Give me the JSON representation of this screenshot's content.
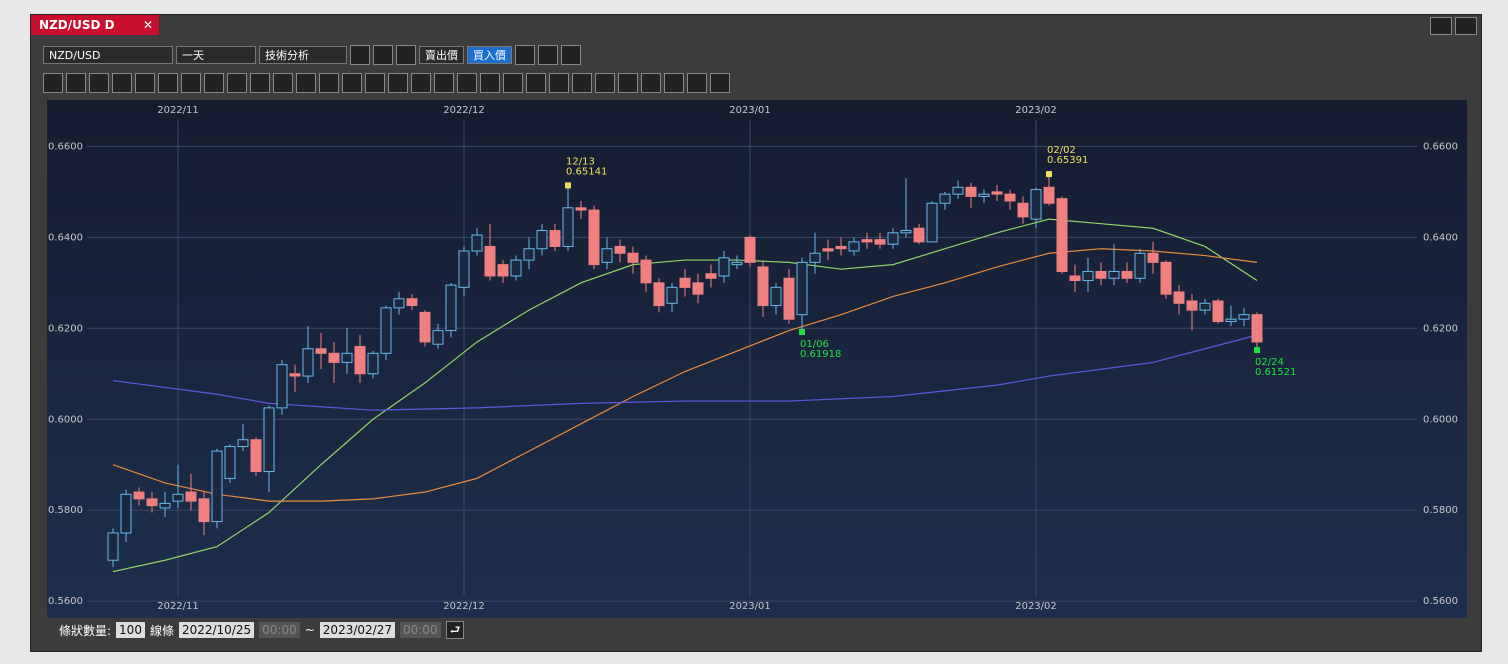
{
  "tab": {
    "title": "NZD/USD D"
  },
  "toolbar": {
    "symbol": "NZD/USD",
    "period": "一天",
    "analysis": "技術分析",
    "sell": "賣出價",
    "buy": "買入價"
  },
  "footer": {
    "count_label": "條狀數量:",
    "count": "100",
    "line_label": "線條",
    "from_date": "2022/10/25",
    "from_time": "00:00",
    "sep": "~",
    "to_date": "2023/02/27",
    "to_time": "00:00"
  },
  "chart_data": {
    "type": "candlestick",
    "categories": [
      null,
      null,
      null,
      null,
      null,
      "2022/11",
      null,
      null,
      null,
      null,
      null,
      null,
      null,
      null,
      null,
      null,
      null,
      null,
      null,
      null,
      null,
      null,
      null,
      null,
      null,
      null,
      null,
      "2022/12",
      null,
      null,
      null,
      null,
      null,
      null,
      null,
      null,
      null,
      null,
      null,
      null,
      null,
      null,
      null,
      null,
      null,
      null,
      null,
      null,
      null,
      "2023/01",
      null,
      null,
      null,
      null,
      null,
      null,
      null,
      null,
      null,
      null,
      null,
      null,
      null,
      null,
      null,
      null,
      null,
      null,
      null,
      null,
      null,
      "2023/02",
      null,
      null,
      null,
      null,
      null,
      null,
      null,
      null,
      null,
      null,
      null,
      null,
      null,
      null,
      null,
      null,
      null
    ],
    "open": [
      0.569,
      0.575,
      0.584,
      0.5825,
      0.5805,
      0.582,
      0.584,
      0.5825,
      0.5775,
      0.587,
      0.594,
      0.5955,
      0.5885,
      0.6025,
      0.61,
      0.6095,
      0.6155,
      0.6145,
      0.6125,
      0.616,
      0.61,
      0.6145,
      0.6245,
      0.6265,
      0.6235,
      0.6165,
      0.6195,
      0.629,
      0.637,
      0.638,
      0.634,
      0.6315,
      0.635,
      0.6375,
      0.6415,
      0.638,
      0.6465,
      0.646,
      0.6345,
      0.638,
      0.6365,
      0.635,
      0.63,
      0.6255,
      0.631,
      0.63,
      0.632,
      0.6315,
      0.634,
      0.64,
      0.6335,
      0.625,
      0.631,
      0.623,
      0.6345,
      0.6375,
      0.638,
      0.637,
      0.6395,
      0.6395,
      0.6385,
      0.641,
      0.642,
      0.639,
      0.6475,
      0.6495,
      0.651,
      0.649,
      0.65,
      0.6495,
      0.6475,
      0.644,
      0.651,
      0.6485,
      0.6315,
      0.6305,
      0.6325,
      0.631,
      0.6325,
      0.631,
      0.6365,
      0.6345,
      0.628,
      0.626,
      0.624,
      0.626,
      0.6215,
      0.622,
      0.623
    ],
    "high": [
      0.576,
      0.5845,
      0.585,
      0.584,
      0.584,
      0.59,
      0.588,
      0.584,
      0.5935,
      0.5945,
      0.599,
      0.596,
      0.603,
      0.613,
      0.612,
      0.6205,
      0.619,
      0.617,
      0.62,
      0.6185,
      0.615,
      0.625,
      0.628,
      0.6275,
      0.624,
      0.621,
      0.63,
      0.638,
      0.642,
      0.643,
      0.635,
      0.636,
      0.64,
      0.643,
      0.643,
      0.65141,
      0.648,
      0.647,
      0.64,
      0.6395,
      0.638,
      0.636,
      0.631,
      0.63,
      0.633,
      0.632,
      0.634,
      0.637,
      0.636,
      0.6405,
      0.635,
      0.63,
      0.633,
      0.6355,
      0.641,
      0.6395,
      0.64,
      0.64,
      0.641,
      0.641,
      0.642,
      0.653,
      0.643,
      0.648,
      0.65,
      0.6525,
      0.652,
      0.6505,
      0.6515,
      0.6505,
      0.649,
      0.651,
      0.65391,
      0.649,
      0.634,
      0.6355,
      0.6345,
      0.6385,
      0.6345,
      0.6375,
      0.639,
      0.635,
      0.6295,
      0.6275,
      0.6265,
      0.6265,
      0.625,
      0.6245,
      0.6235
    ],
    "low": [
      0.5675,
      0.573,
      0.581,
      0.5795,
      0.5785,
      0.5805,
      0.58,
      0.5745,
      0.576,
      0.586,
      0.593,
      0.5875,
      0.584,
      0.601,
      0.606,
      0.608,
      0.611,
      0.608,
      0.61,
      0.608,
      0.609,
      0.613,
      0.623,
      0.624,
      0.616,
      0.6155,
      0.618,
      0.627,
      0.636,
      0.6305,
      0.63,
      0.6305,
      0.633,
      0.636,
      0.637,
      0.637,
      0.644,
      0.633,
      0.633,
      0.6345,
      0.632,
      0.628,
      0.6235,
      0.6235,
      0.627,
      0.6255,
      0.629,
      0.63,
      0.633,
      0.6335,
      0.6225,
      0.623,
      0.621,
      0.61918,
      0.632,
      0.635,
      0.636,
      0.636,
      0.6375,
      0.6375,
      0.6375,
      0.64,
      0.6385,
      0.639,
      0.646,
      0.6485,
      0.6465,
      0.6475,
      0.648,
      0.646,
      0.643,
      0.642,
      0.647,
      0.632,
      0.628,
      0.628,
      0.6295,
      0.6295,
      0.63,
      0.63,
      0.632,
      0.6265,
      0.623,
      0.6195,
      0.623,
      0.621,
      0.6205,
      0.6205,
      0.61521
    ],
    "close": [
      0.575,
      0.5835,
      0.5825,
      0.581,
      0.5815,
      0.5835,
      0.582,
      0.5775,
      0.593,
      0.594,
      0.5955,
      0.5885,
      0.6025,
      0.612,
      0.6095,
      0.6155,
      0.6145,
      0.6125,
      0.6145,
      0.61,
      0.6145,
      0.6245,
      0.6265,
      0.625,
      0.617,
      0.6195,
      0.6295,
      0.637,
      0.6405,
      0.6315,
      0.6315,
      0.635,
      0.6375,
      0.6415,
      0.638,
      0.6465,
      0.646,
      0.634,
      0.6375,
      0.6365,
      0.6345,
      0.63,
      0.625,
      0.629,
      0.629,
      0.6275,
      0.631,
      0.6355,
      0.6345,
      0.6345,
      0.625,
      0.629,
      0.622,
      0.6345,
      0.6365,
      0.637,
      0.6375,
      0.639,
      0.639,
      0.6385,
      0.641,
      0.6415,
      0.639,
      0.6475,
      0.6495,
      0.651,
      0.649,
      0.6495,
      0.6495,
      0.648,
      0.6445,
      0.6505,
      0.6475,
      0.6325,
      0.6305,
      0.6325,
      0.631,
      0.6325,
      0.631,
      0.6365,
      0.6345,
      0.6275,
      0.6255,
      0.624,
      0.6255,
      0.6215,
      0.622,
      0.623,
      0.617
    ],
    "up_color": "#6ab8e8",
    "down_color": "#f08080",
    "lines": [
      {
        "color": "#8fd46a",
        "x": [
          0,
          4,
          8,
          12,
          16,
          20,
          24,
          28,
          32,
          36,
          40,
          44,
          48,
          52,
          56,
          60,
          64,
          68,
          72,
          76,
          80,
          84,
          88
        ],
        "values": [
          0.5665,
          0.569,
          0.572,
          0.5795,
          0.59,
          0.6,
          0.608,
          0.617,
          0.624,
          0.63,
          0.634,
          0.635,
          0.635,
          0.6345,
          0.633,
          0.634,
          0.6375,
          0.641,
          0.644,
          0.643,
          0.642,
          0.638,
          0.6305
        ]
      },
      {
        "color": "#e88a3c",
        "x": [
          0,
          4,
          8,
          12,
          16,
          20,
          24,
          28,
          32,
          36,
          40,
          44,
          48,
          52,
          56,
          60,
          64,
          68,
          72,
          76,
          80,
          84,
          88
        ],
        "values": [
          0.59,
          0.586,
          0.5835,
          0.582,
          0.582,
          0.5825,
          0.584,
          0.587,
          0.593,
          0.599,
          0.605,
          0.6105,
          0.615,
          0.6195,
          0.623,
          0.627,
          0.63,
          0.6335,
          0.6365,
          0.6375,
          0.637,
          0.636,
          0.6345
        ]
      },
      {
        "color": "#5a5ae0",
        "x": [
          0,
          8,
          12,
          20,
          28,
          36,
          44,
          52,
          60,
          68,
          72,
          80,
          84,
          88
        ],
        "values": [
          0.6085,
          0.6055,
          0.6035,
          0.602,
          0.6025,
          0.6035,
          0.604,
          0.604,
          0.605,
          0.6075,
          0.6095,
          0.6125,
          0.6155,
          0.6185
        ]
      }
    ],
    "annotations": [
      {
        "x": 35,
        "y": 0.65141,
        "date": "12/13",
        "label": "0.65141",
        "color": "#f0e060",
        "side": "high"
      },
      {
        "x": 53,
        "y": 0.61918,
        "date": "01/06",
        "label": "0.61918",
        "color": "#20e040",
        "side": "low"
      },
      {
        "x": 72,
        "y": 0.65391,
        "date": "02/02",
        "label": "0.65391",
        "color": "#f0e060",
        "side": "high"
      },
      {
        "x": 88,
        "y": 0.61521,
        "date": "02/24",
        "label": "0.61521",
        "color": "#20e040",
        "side": "low"
      }
    ],
    "ylim": [
      0.5563,
      0.6702
    ],
    "yticks": [
      {
        "value": 0.66,
        "label": "0.6600"
      },
      {
        "value": 0.64,
        "label": "0.6400"
      },
      {
        "value": 0.62,
        "label": "0.6200"
      },
      {
        "value": 0.6,
        "label": "0.6000"
      },
      {
        "value": 0.58,
        "label": "0.5800"
      },
      {
        "value": 0.56,
        "label": "0.5600"
      }
    ],
    "grid": true
  }
}
